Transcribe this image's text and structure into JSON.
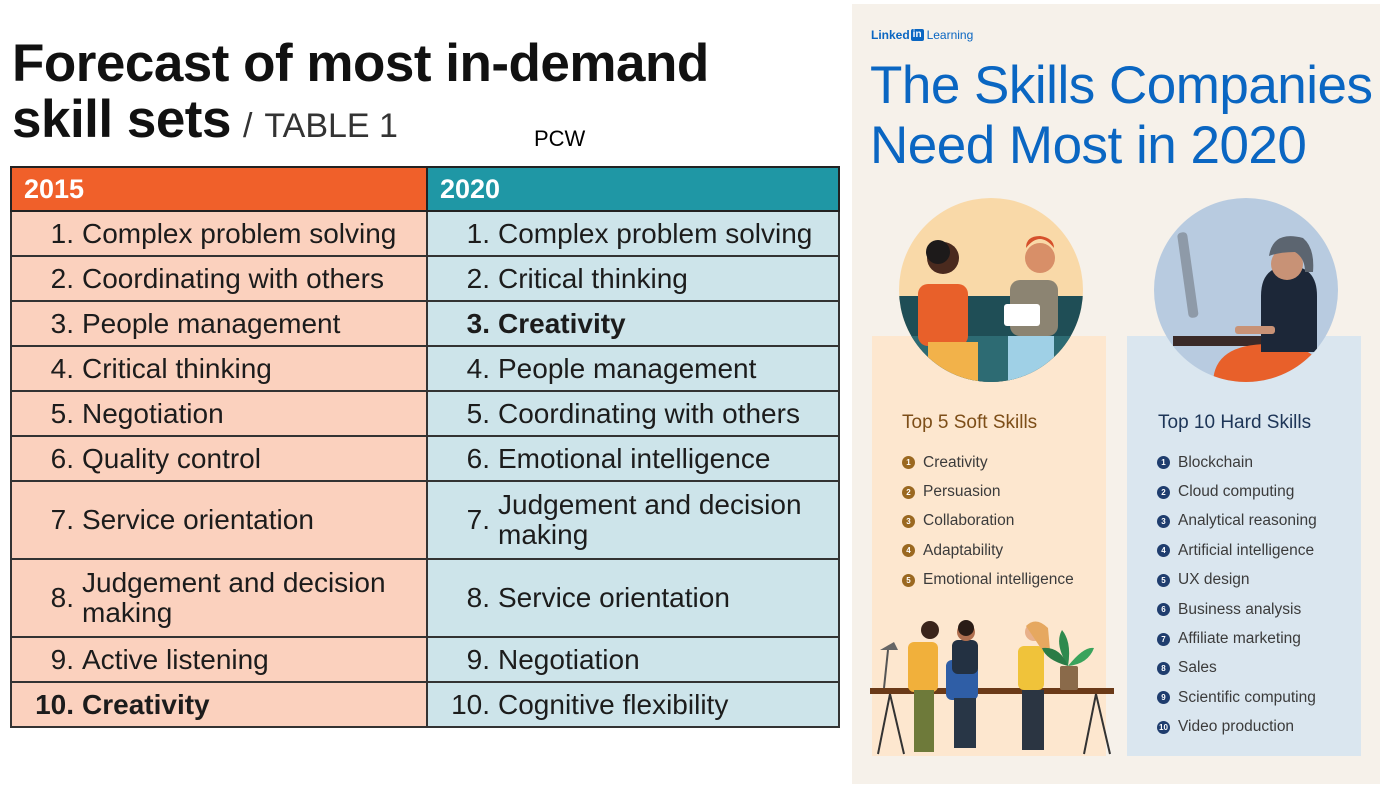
{
  "left": {
    "title_line1": "Forecast of most in-demand",
    "title_line2": "skill sets",
    "title_slash": "/",
    "title_suffix": "TABLE 1",
    "source_tag": "PCW",
    "table": {
      "headers": [
        "2015",
        "2020"
      ],
      "rows": [
        {
          "n2015": "1.",
          "s2015": "Complex problem solving",
          "n2020": "1.",
          "s2020": "Complex problem solving"
        },
        {
          "n2015": "2.",
          "s2015": "Coordinating with others",
          "n2020": "2.",
          "s2020": "Critical thinking"
        },
        {
          "n2015": "3.",
          "s2015": "People management",
          "n2020": "3.",
          "s2020": "Creativity"
        },
        {
          "n2015": "4.",
          "s2015": "Critical thinking",
          "n2020": "4.",
          "s2020": "People management"
        },
        {
          "n2015": "5.",
          "s2015": "Negotiation",
          "n2020": "5.",
          "s2020": "Coordinating with others"
        },
        {
          "n2015": "6.",
          "s2015": "Quality control",
          "n2020": "6.",
          "s2020": "Emotional intelligence"
        },
        {
          "n2015": "7.",
          "s2015": "Service orientation",
          "n2020": "7.",
          "s2020": "Judgement and decision making"
        },
        {
          "n2015": "8.",
          "s2015": "Judgement and decision making",
          "n2020": "8.",
          "s2020": "Service orientation"
        },
        {
          "n2015": "9.",
          "s2015": "Active listening",
          "n2020": "9.",
          "s2020": "Negotiation"
        },
        {
          "n2015": "10.",
          "s2015": "Creativity",
          "n2020": "10.",
          "s2020": "Cognitive flexibility"
        }
      ]
    }
  },
  "right": {
    "brand_prefix": "Linked",
    "brand_box": "in",
    "brand_suffix": "Learning",
    "title_line1": "The Skills Companies",
    "title_line2": "Need Most in 2020",
    "soft": {
      "heading": "Top 5 Soft Skills",
      "items": [
        "Creativity",
        "Persuasion",
        "Collaboration",
        "Adaptability",
        "Emotional intelligence"
      ]
    },
    "hard": {
      "heading": "Top 10 Hard Skills",
      "items": [
        "Blockchain",
        "Cloud computing",
        "Analytical reasoning",
        "Artificial intelligence",
        "UX design",
        "Business analysis",
        "Affiliate marketing",
        "Sales",
        "Scientific computing",
        "Video production"
      ]
    }
  },
  "colors": {
    "header_2015": "#f0602a",
    "header_2020": "#1f97a5",
    "cell_2015": "#fbd1be",
    "cell_2020": "#cde4ea",
    "linkedin_blue": "#0a66c2",
    "soft_panel": "#fde7cf",
    "hard_panel": "#dae6ef"
  }
}
